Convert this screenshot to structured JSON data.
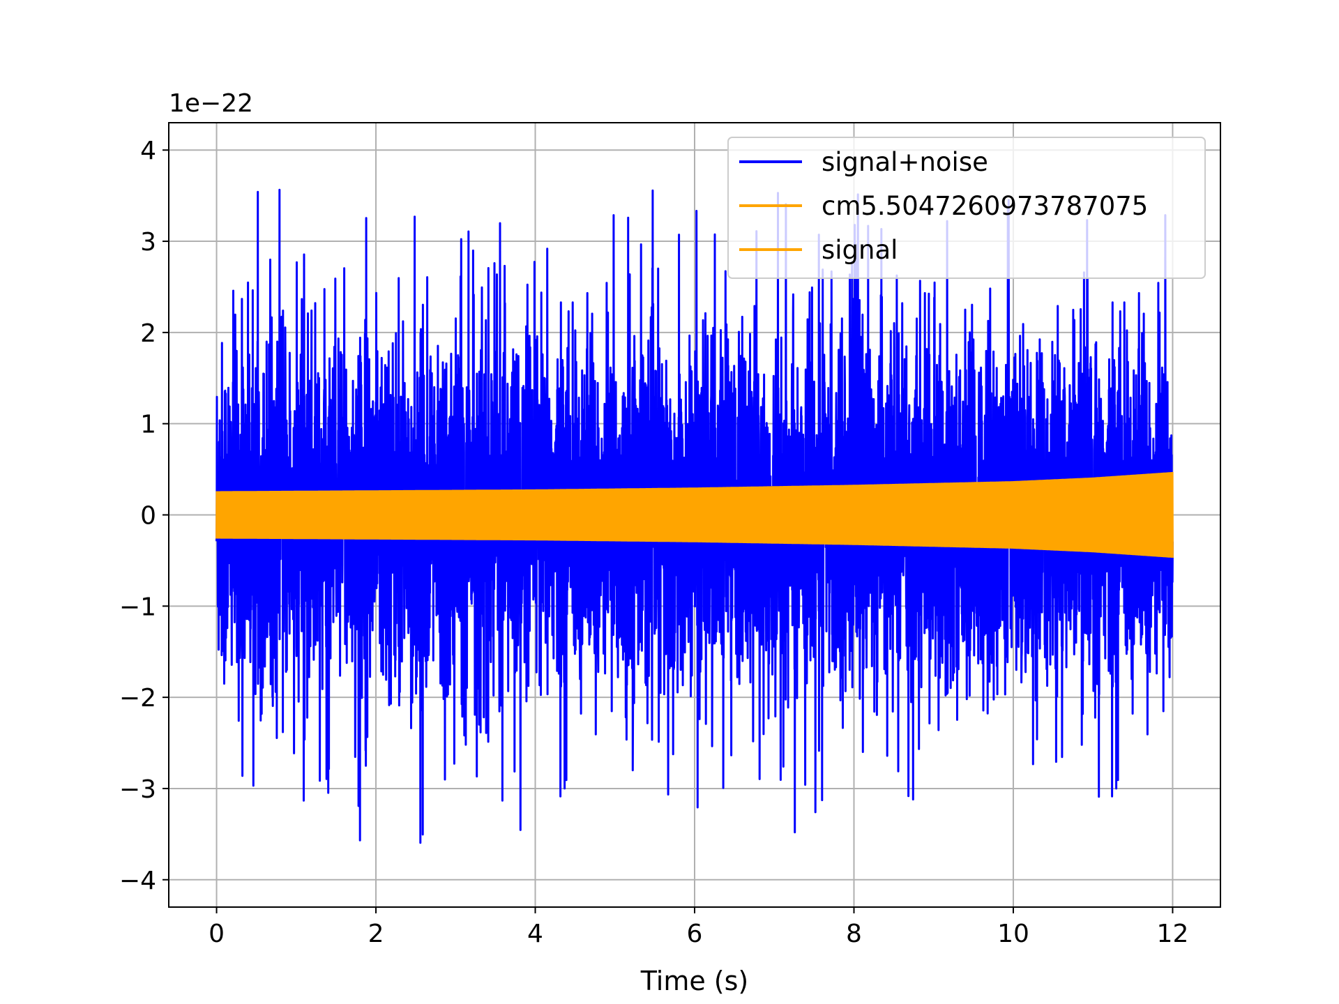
{
  "chart_data": {
    "type": "line",
    "title": "",
    "xlabel": "Time (s)",
    "ylabel": "",
    "y_offset_label": "1e−22",
    "xlim": [
      -0.6,
      12.6
    ],
    "ylim": [
      -4.3,
      4.3
    ],
    "x_ticks": [
      0,
      2,
      4,
      6,
      8,
      10,
      12
    ],
    "x_tick_labels": [
      "0",
      "2",
      "4",
      "6",
      "8",
      "10",
      "12"
    ],
    "y_ticks": [
      -4,
      -3,
      -2,
      -1,
      0,
      1,
      2,
      3,
      4
    ],
    "y_tick_labels": [
      "−4",
      "−3",
      "−2",
      "−1",
      "0",
      "1",
      "2",
      "3",
      "4"
    ],
    "grid": true,
    "legend_position": "top-right",
    "series": [
      {
        "name": "signal+noise",
        "color": "#0000ff",
        "x_range": [
          0,
          12
        ],
        "typical_envelope": 1.5,
        "min": -3.9,
        "max": 3.85
      },
      {
        "name": "cm5.5047260973787075",
        "color": "#ffa500",
        "x_range": [
          0,
          12
        ]
      },
      {
        "name": "signal",
        "color": "#ffa500",
        "x_range": [
          0,
          12
        ],
        "amplitude_points": [
          [
            0,
            0.26
          ],
          [
            2,
            0.27
          ],
          [
            4,
            0.28
          ],
          [
            6,
            0.3
          ],
          [
            8,
            0.33
          ],
          [
            10,
            0.37
          ],
          [
            11,
            0.41
          ],
          [
            12,
            0.47
          ]
        ]
      }
    ]
  }
}
